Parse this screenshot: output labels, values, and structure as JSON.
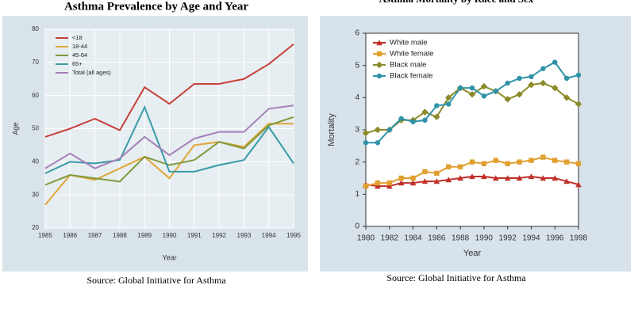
{
  "chart_data": [
    {
      "type": "line",
      "title": "Asthma Prevalence by Age and Year",
      "x_label": "Year",
      "y_label": "Age",
      "source": "Source: Global Initiative for Asthma",
      "categories": [
        "1985",
        "1986",
        "1987",
        "1988",
        "1989",
        "1990",
        "1991",
        "1992",
        "1993",
        "1994",
        "1995"
      ],
      "ylim": [
        20,
        80
      ],
      "yticks": [
        20,
        30,
        40,
        50,
        60,
        70,
        80
      ],
      "grid": true,
      "legend": "top-left",
      "series": [
        {
          "name": "<18",
          "color": "#c8413a",
          "values": [
            47.5,
            50,
            53,
            49.5,
            62.5,
            57.5,
            63.5,
            63.5,
            65,
            69.5,
            75.5
          ]
        },
        {
          "name": "18-44",
          "color": "#e0a63a",
          "values": [
            27,
            36,
            34.5,
            38,
            41.5,
            35,
            45,
            46,
            44.5,
            51.5,
            51.5
          ]
        },
        {
          "name": "45-64",
          "color": "#7f9a3c",
          "values": [
            33,
            36,
            35,
            34,
            41.5,
            39,
            40.5,
            46,
            44,
            51,
            53.5
          ]
        },
        {
          "name": "65+",
          "color": "#3a9aa6",
          "values": [
            36.5,
            40,
            39.5,
            40.5,
            56.5,
            37,
            37,
            39,
            40.5,
            50.5,
            39.5
          ]
        },
        {
          "name": "Total (all ages)",
          "color": "#a77fb8",
          "values": [
            38,
            42.5,
            38,
            41,
            47.5,
            42,
            47,
            49,
            49,
            56,
            57
          ]
        }
      ]
    },
    {
      "type": "line",
      "title": "Asthma Mortality by Race and Sex",
      "x_label": "Year",
      "y_label": "Mortality",
      "source": "Source: Global Initiative for Asthma",
      "x": [
        1980,
        1981,
        1982,
        1983,
        1984,
        1985,
        1986,
        1987,
        1988,
        1989,
        1990,
        1991,
        1992,
        1993,
        1994,
        1995,
        1996,
        1997,
        1998
      ],
      "xlim": [
        1980,
        1998
      ],
      "xticks": [
        1980,
        1982,
        1984,
        1986,
        1988,
        1990,
        1992,
        1994,
        1996,
        1998
      ],
      "ylim": [
        0,
        6
      ],
      "yticks": [
        0,
        1,
        2,
        3,
        4,
        5,
        6
      ],
      "grid": false,
      "legend": "top-left",
      "series": [
        {
          "name": "White male",
          "color": "#c0302a",
          "marker": "triangle",
          "values": [
            1.3,
            1.25,
            1.25,
            1.35,
            1.35,
            1.4,
            1.4,
            1.45,
            1.5,
            1.55,
            1.55,
            1.5,
            1.5,
            1.5,
            1.55,
            1.5,
            1.5,
            1.4,
            1.3
          ]
        },
        {
          "name": "White female",
          "color": "#e0a030",
          "marker": "square",
          "values": [
            1.25,
            1.35,
            1.35,
            1.5,
            1.5,
            1.7,
            1.65,
            1.85,
            1.85,
            2.0,
            1.95,
            2.05,
            1.95,
            2.0,
            2.05,
            2.15,
            2.05,
            2.0,
            1.95
          ]
        },
        {
          "name": "Black male",
          "color": "#8a8a2a",
          "marker": "diamond",
          "values": [
            2.9,
            3.0,
            3.0,
            3.3,
            3.3,
            3.55,
            3.4,
            4.0,
            4.3,
            4.1,
            4.35,
            4.2,
            3.95,
            4.1,
            4.4,
            4.45,
            4.3,
            4.0,
            3.8
          ]
        },
        {
          "name": "Black female",
          "color": "#2f93a8",
          "marker": "circle",
          "values": [
            2.6,
            2.6,
            3.0,
            3.35,
            3.25,
            3.3,
            3.75,
            3.8,
            4.3,
            4.3,
            4.05,
            4.2,
            4.45,
            4.6,
            4.65,
            4.9,
            5.1,
            4.6,
            4.7
          ]
        }
      ]
    }
  ]
}
